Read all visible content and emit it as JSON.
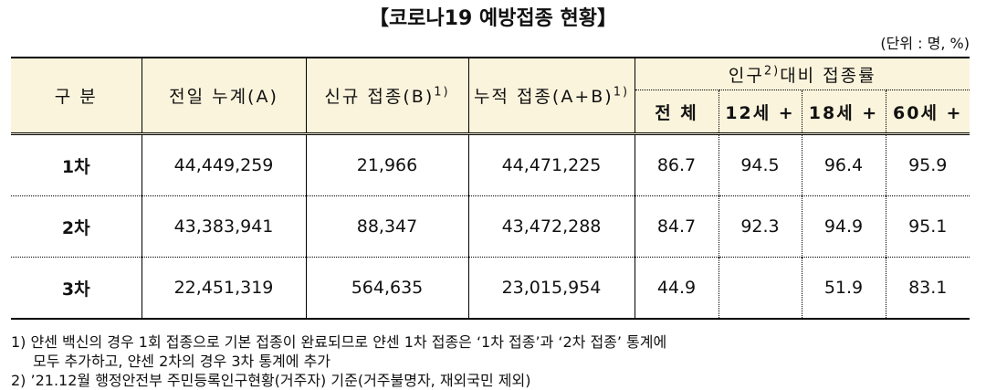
{
  "title": "【코로나19 예방접종 현황】",
  "unit": "(단위 : 명, %)",
  "table": {
    "headers": [
      {
        "text": "구 분"
      },
      {
        "text": "전일 누계(A)"
      },
      {
        "text": "신규 접종(B)",
        "sup": "1)"
      },
      {
        "text": "누적 접종(A+B)",
        "sup": "1)"
      }
    ],
    "group_header": {
      "text": "인구",
      "sup": "2)",
      "rest": "대비 접종률"
    },
    "sub_headers": [
      "전 체",
      "12세 +",
      "18세 +",
      "60세 +"
    ],
    "rows": [
      [
        "1차",
        "44,449,259",
        "21,966",
        "44,471,225",
        "86.7",
        "94.5",
        "96.4",
        "95.9"
      ],
      [
        "2차",
        "43,383,941",
        "88,347",
        "43,472,288",
        "84.7",
        "92.3",
        "94.9",
        "95.1"
      ],
      [
        "3차",
        "22,451,319",
        "564,635",
        "23,015,954",
        "44.9",
        null,
        "51.9",
        "83.1"
      ]
    ]
  },
  "footnotes": [
    "1) 얀센 백신의 경우 1회 접종으로 기본 접종이 완료되므로 얀센 1차 접종은 ‘1차 접종’과 ‘2차 접종’ 통계에",
    "모두 추가하고, 얀센 2차의 경우 3차 통계에 추가",
    "2) ’21.12월 행정안전부 주민등록인구현황(거주자) 기준(거주불명자, 재외국민 제외)"
  ]
}
